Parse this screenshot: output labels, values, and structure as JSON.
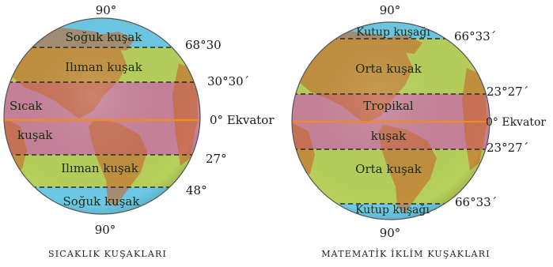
{
  "left_globe": {
    "top_label": "90°",
    "bottom_label": "90°",
    "caption": "SICAKLIK KUŞAKLARI",
    "zones": {
      "cold_north": "Soğuk kuşak",
      "temperate_north": "Ilıman kuşak",
      "hot_line1": "Sıcak",
      "hot_line2": "kuşak",
      "temperate_south": "Ilıman kuşak",
      "cold_south": "Soğuk kuşak"
    },
    "latitudes": {
      "north_cold": "68°30",
      "north_temperate": "30°30´",
      "equator": "0° Ekvator",
      "south_temperate": "27°",
      "south_cold": "48°"
    }
  },
  "right_globe": {
    "top_label": "90°",
    "bottom_label": "90°",
    "caption": "MATEMATİK İKLİM KUŞAKLARI",
    "zones": {
      "polar_north": "Kutup kuşağı",
      "middle_north": "Orta kuşak",
      "tropical_line1": "Tropikal",
      "tropical_line2": "kuşak",
      "middle_south": "Orta kuşak",
      "polar_south": "Kutup kuşağı"
    },
    "latitudes": {
      "arctic_circle": "66°33´",
      "tropic_cancer": "23°27´",
      "equator": "0° Ekvator",
      "tropic_capricorn": "23°27´",
      "antarctic_circle": "66°33´"
    }
  },
  "colors": {
    "cold": "#6cc9e6",
    "temperate": "#b7d05a",
    "hot": "#c7829a",
    "equator_line": "#f08a1c",
    "land": "#c96a2e"
  }
}
